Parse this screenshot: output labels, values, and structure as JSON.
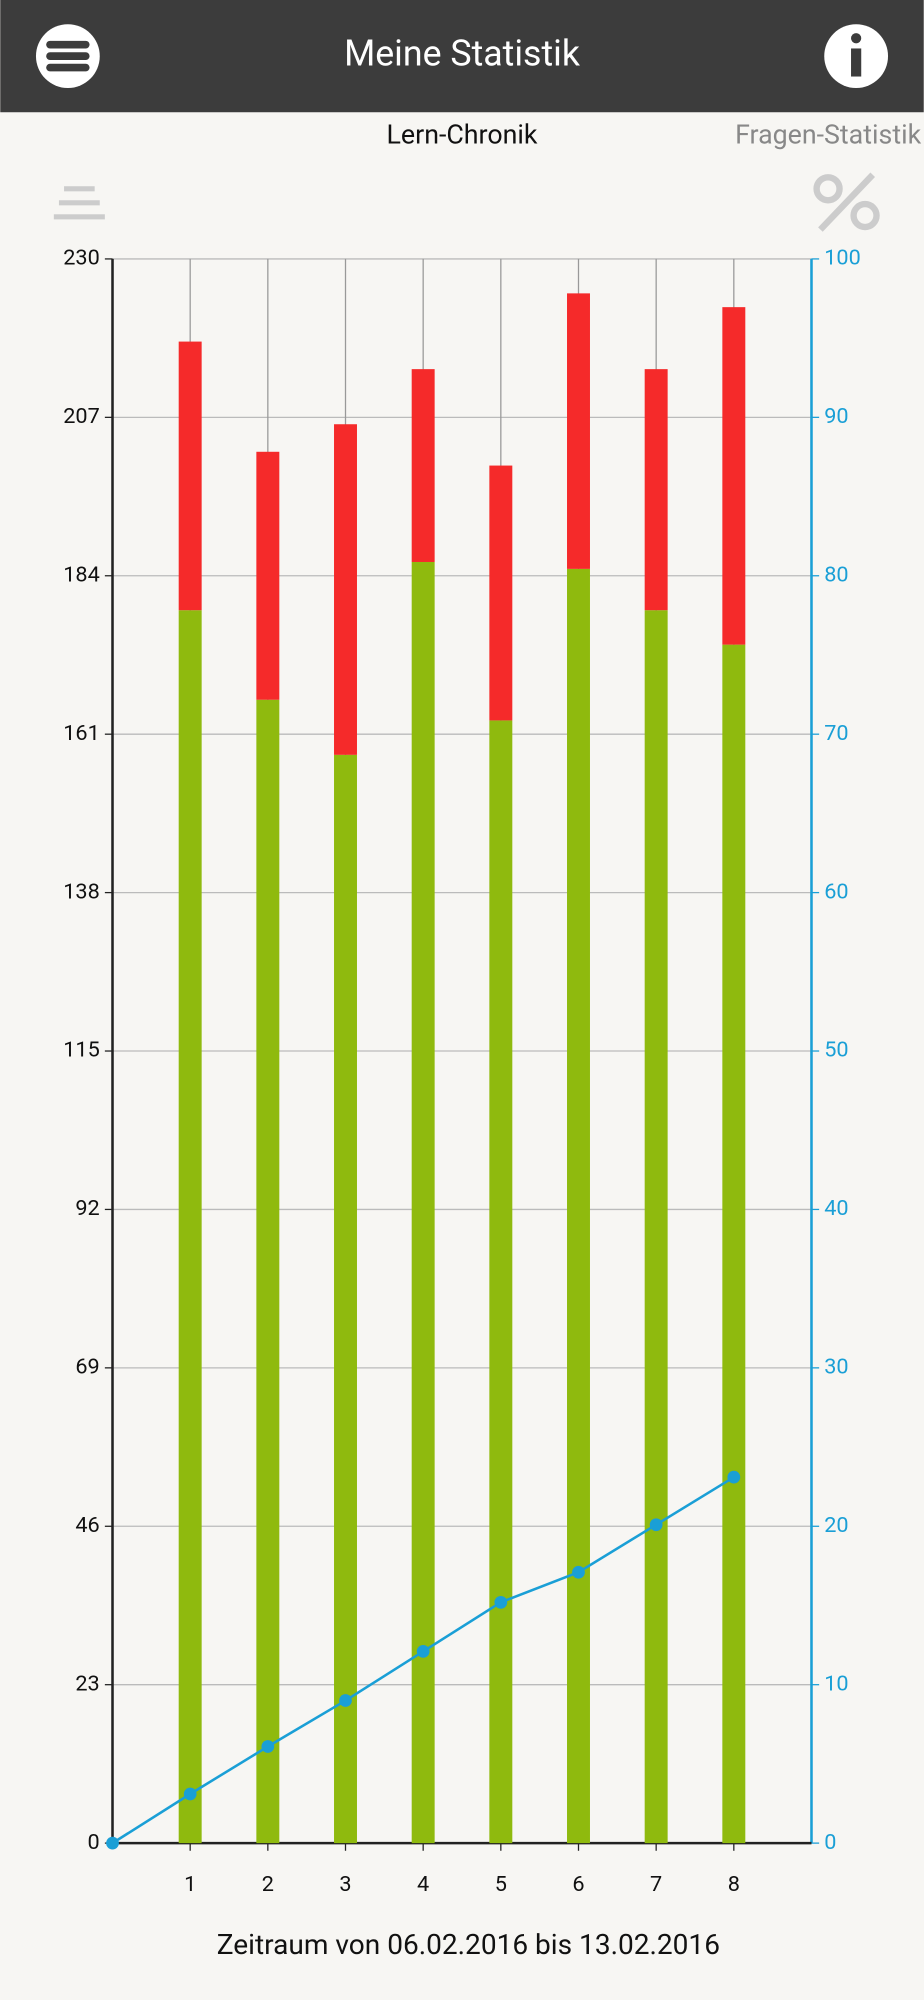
{
  "header": {
    "title": "Meine Statistik"
  },
  "tabs": [
    "Lern-Chronik",
    "Fragen-Statistik"
  ],
  "chart_data": {
    "type": "bar",
    "xlabel": "Zeitraum von 06.02.2016 bis 13.02.2016",
    "x": [
      1,
      2,
      3,
      4,
      5,
      6,
      7,
      8
    ],
    "xlim": [
      0,
      9
    ],
    "xticks": [
      1,
      2,
      3,
      4,
      5,
      6,
      7,
      8
    ],
    "ylim": [
      0,
      230
    ],
    "yticks": [
      0,
      23,
      46,
      69,
      92,
      115,
      138,
      161,
      184,
      207,
      230
    ],
    "y2lim": [
      0,
      100
    ],
    "y2ticks": [
      0,
      10,
      20,
      30,
      40,
      50,
      60,
      70,
      80,
      90,
      100
    ],
    "stacked": true,
    "grid": true,
    "series": [
      {
        "color": "#8fba0e",
        "values": [
          179,
          166,
          158,
          186,
          163,
          185,
          179,
          174
        ]
      },
      {
        "color": "#f52a2a",
        "values": [
          39,
          36,
          48,
          28,
          37,
          40,
          35,
          49
        ]
      },
      {
        "type": "line",
        "axis": "y2",
        "color": "#1a9fd6",
        "x": [
          0,
          1,
          2,
          3,
          4,
          5,
          6,
          7,
          8
        ],
        "values": [
          0,
          3.1,
          6.1,
          9.0,
          12.1,
          15.2,
          17.1,
          20.1,
          23.1
        ]
      }
    ]
  }
}
